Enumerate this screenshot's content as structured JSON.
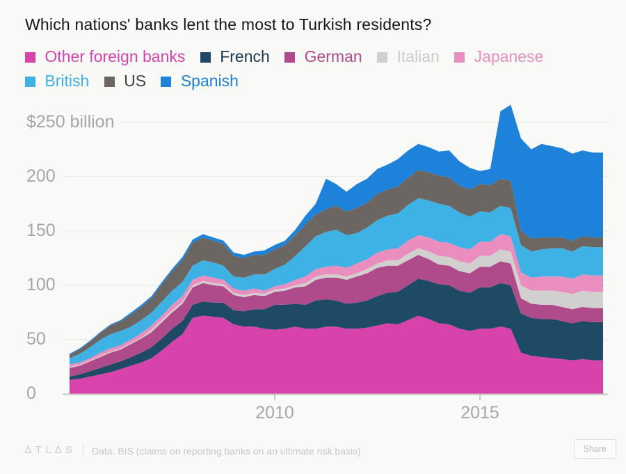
{
  "page": {
    "background": "#f9f9f7"
  },
  "header": {
    "title": "Which nations' banks lent the most to Turkish residents?"
  },
  "legend": {
    "items": [
      {
        "label": "Other foreign banks",
        "color": "#d843ab",
        "text_color": "#d843ab"
      },
      {
        "label": "French",
        "color": "#1e4a66",
        "text_color": "#17384f"
      },
      {
        "label": "German",
        "color": "#b04b8b",
        "text_color": "#b04b8b"
      },
      {
        "label": "Italian",
        "color": "#d2cfcf",
        "text_color": "#cdcac9"
      },
      {
        "label": "Japanese",
        "color": "#ea8ec0",
        "text_color": "#ea8ec0"
      },
      {
        "label": "British",
        "color": "#3fb2e5",
        "text_color": "#3fb2e5"
      },
      {
        "label": "US",
        "color": "#6b6662",
        "text_color": "#413f3d"
      },
      {
        "label": "Spanish",
        "color": "#1e82db",
        "text_color": "#1e82db"
      }
    ]
  },
  "chart_data": {
    "type": "area",
    "stacked": true,
    "title": "Which nations' banks lent the most to Turkish residents?",
    "unit": "USD billions",
    "grid": true,
    "legend_position": "top",
    "xlim": [
      2005,
      2018
    ],
    "ylim": [
      0,
      250
    ],
    "yticks": [
      0,
      50,
      100,
      150,
      200,
      250
    ],
    "ytick_labels": [
      "0",
      "50",
      "100",
      "150",
      "200",
      "$250 billion"
    ],
    "xticks": [
      2010,
      2015
    ],
    "xtick_labels": [
      "2010",
      "2015"
    ],
    "x": [
      2005,
      2005.25,
      2005.5,
      2005.75,
      2006,
      2006.25,
      2006.5,
      2006.75,
      2007,
      2007.25,
      2007.5,
      2007.75,
      2008,
      2008.25,
      2008.5,
      2008.75,
      2009,
      2009.25,
      2009.5,
      2009.75,
      2010,
      2010.25,
      2010.5,
      2010.75,
      2011,
      2011.25,
      2011.5,
      2011.75,
      2012,
      2012.25,
      2012.5,
      2012.75,
      2013,
      2013.25,
      2013.5,
      2013.75,
      2014,
      2014.25,
      2014.5,
      2014.75,
      2015,
      2015.25,
      2015.5,
      2015.75,
      2016,
      2016.25,
      2016.5,
      2016.75,
      2017,
      2017.25,
      2017.5,
      2017.75,
      2018
    ],
    "series": [
      {
        "name": "Other foreign banks",
        "color": "#d843ab",
        "values": [
          13,
          14,
          16,
          18,
          20,
          23,
          26,
          29,
          33,
          40,
          48,
          55,
          70,
          72,
          71,
          70,
          64,
          62,
          62,
          60,
          59,
          60,
          62,
          60,
          60,
          62,
          62,
          60,
          60,
          61,
          63,
          65,
          64,
          68,
          72,
          69,
          65,
          64,
          60,
          58,
          60,
          60,
          62,
          60,
          38,
          35,
          34,
          33,
          32,
          31,
          32,
          31,
          31
        ]
      },
      {
        "name": "French",
        "color": "#1e4a66",
        "values": [
          3,
          4,
          5,
          6,
          7,
          7,
          8,
          9,
          10,
          11,
          12,
          12,
          12,
          13,
          13,
          14,
          13,
          14,
          16,
          18,
          23,
          22,
          21,
          22,
          26,
          25,
          24,
          23,
          24,
          25,
          27,
          28,
          30,
          32,
          34,
          35,
          36,
          36,
          35,
          35,
          38,
          38,
          40,
          40,
          36,
          35,
          35,
          36,
          35,
          34,
          35,
          35,
          35
        ]
      },
      {
        "name": "German",
        "color": "#b04b8b",
        "values": [
          8,
          8,
          9,
          10,
          11,
          11,
          12,
          13,
          14,
          15,
          15,
          16,
          16,
          17,
          16,
          15,
          14,
          13,
          13,
          12,
          12,
          13,
          15,
          17,
          19,
          20,
          21,
          22,
          24,
          25,
          26,
          25,
          24,
          23,
          22,
          20,
          18,
          18,
          18,
          18,
          19,
          19,
          20,
          20,
          14,
          13,
          13,
          13,
          13,
          13,
          13,
          13,
          13
        ]
      },
      {
        "name": "Italian",
        "color": "#d2cfcf",
        "values": [
          1,
          1,
          1,
          1,
          1,
          1,
          1,
          1,
          2,
          2,
          2,
          2,
          2,
          2,
          2,
          2,
          2,
          2,
          2,
          2,
          2,
          2,
          2,
          3,
          3,
          3,
          3,
          3,
          3,
          4,
          4,
          5,
          5,
          6,
          6,
          7,
          8,
          8,
          9,
          9,
          10,
          10,
          11,
          11,
          12,
          12,
          13,
          13,
          14,
          14,
          15,
          15,
          15
        ]
      },
      {
        "name": "Japanese",
        "color": "#ea8ec0",
        "values": [
          2,
          2,
          2,
          3,
          3,
          3,
          3,
          4,
          4,
          4,
          5,
          5,
          5,
          5,
          5,
          4,
          4,
          4,
          4,
          3,
          3,
          4,
          5,
          6,
          7,
          7,
          8,
          8,
          9,
          9,
          10,
          10,
          11,
          12,
          12,
          13,
          13,
          13,
          13,
          13,
          13,
          13,
          14,
          14,
          12,
          12,
          13,
          13,
          14,
          14,
          15,
          15,
          15
        ]
      },
      {
        "name": "British",
        "color": "#3fb2e5",
        "values": [
          6,
          8,
          10,
          12,
          13,
          13,
          12,
          12,
          12,
          13,
          13,
          13,
          13,
          14,
          14,
          13,
          11,
          12,
          13,
          15,
          16,
          18,
          22,
          28,
          30,
          32,
          33,
          30,
          28,
          29,
          30,
          31,
          32,
          33,
          34,
          34,
          35,
          34,
          32,
          30,
          28,
          27,
          26,
          26,
          25,
          24,
          25,
          26,
          26,
          25,
          26,
          26,
          26
        ]
      },
      {
        "name": "US",
        "color": "#6b6662",
        "values": [
          3,
          4,
          5,
          6,
          8,
          9,
          11,
          12,
          13,
          16,
          18,
          20,
          21,
          21,
          20,
          20,
          19,
          18,
          18,
          18,
          18,
          18,
          19,
          20,
          20,
          21,
          22,
          22,
          23,
          23,
          24,
          24,
          25,
          25,
          26,
          26,
          26,
          26,
          25,
          25,
          25,
          25,
          25,
          25,
          13,
          12,
          11,
          10,
          10,
          10,
          9,
          9,
          9
        ]
      },
      {
        "name": "Spanish",
        "color": "#1e82db",
        "values": [
          1,
          1,
          1,
          1,
          1,
          1,
          2,
          2,
          2,
          2,
          2,
          3,
          3,
          3,
          3,
          3,
          3,
          3,
          3,
          4,
          4,
          4,
          5,
          8,
          10,
          28,
          20,
          18,
          22,
          22,
          23,
          23,
          25,
          25,
          24,
          23,
          22,
          25,
          22,
          20,
          12,
          15,
          62,
          70,
          85,
          82,
          86,
          84,
          82,
          80,
          79,
          78,
          78
        ]
      }
    ]
  },
  "footer": {
    "logo": "∆TL∆S",
    "source": "Data: BIS (claims on reporting banks on an ultimate risk basis)",
    "share_label": "Share"
  }
}
